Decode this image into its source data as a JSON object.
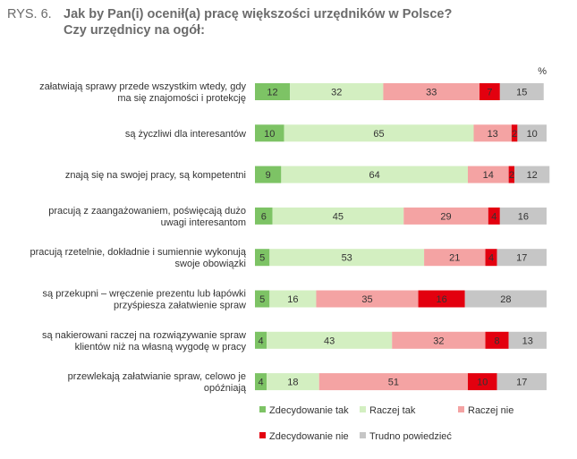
{
  "figure": {
    "label": "RYS. 6.",
    "title_line1": "Jak by Pan(i) ocenił(a) pracę większości urzędników w Polsce?",
    "title_line2": "Czy urzędnicy na ogół:"
  },
  "unit": "%",
  "colors": {
    "Zdecydowanie tak": "#7dc365",
    "Raczej tak": "#d3efc1",
    "Raczej nie": "#f4a3a3",
    "Zdecydowanie nie": "#e3000f",
    "Trudno powiedzieć": "#c6c6c6"
  },
  "chart_data": {
    "type": "bar",
    "orientation": "horizontal",
    "stacked": true,
    "categories": [
      [
        "załatwiają sprawy przede wszystkim wtedy, gdy",
        "ma się znajomości i protekcję"
      ],
      [
        "są życzliwi dla interesantów"
      ],
      [
        "znają się na swojej pracy, są kompetentni"
      ],
      [
        "pracują z zaangażowaniem, poświęcają dużo",
        "uwagi interesantom"
      ],
      [
        "pracują rzetelnie, dokładnie i sumiennie wykonują",
        "swoje obowiązki"
      ],
      [
        "są przekupni – wręczenie prezentu lub łapówki",
        "przyśpiesza załatwienie spraw"
      ],
      [
        "są nakierowani raczej na rozwiązywanie spraw",
        "klientów niż na własną wygodę w pracy"
      ],
      [
        "przewlekają załatwianie spraw, celowo je",
        "opóźniają"
      ]
    ],
    "series": [
      {
        "name": "Zdecydowanie tak",
        "values": [
          12,
          10,
          9,
          6,
          5,
          5,
          4,
          4
        ]
      },
      {
        "name": "Raczej tak",
        "values": [
          32,
          65,
          64,
          45,
          53,
          16,
          43,
          18
        ]
      },
      {
        "name": "Raczej nie",
        "values": [
          33,
          13,
          14,
          29,
          21,
          35,
          32,
          51
        ]
      },
      {
        "name": "Zdecydowanie nie",
        "values": [
          7,
          2,
          2,
          4,
          4,
          16,
          8,
          10
        ]
      },
      {
        "name": "Trudno powiedzieć",
        "values": [
          15,
          10,
          12,
          16,
          17,
          28,
          13,
          17
        ]
      }
    ],
    "xlim": [
      0,
      100
    ],
    "grid": false,
    "legend_position": "bottom",
    "legend": [
      [
        "Zdecydowanie tak",
        "Raczej tak",
        "Raczej nie"
      ],
      [
        "Zdecydowanie nie",
        "Trudno powiedzieć"
      ]
    ]
  }
}
